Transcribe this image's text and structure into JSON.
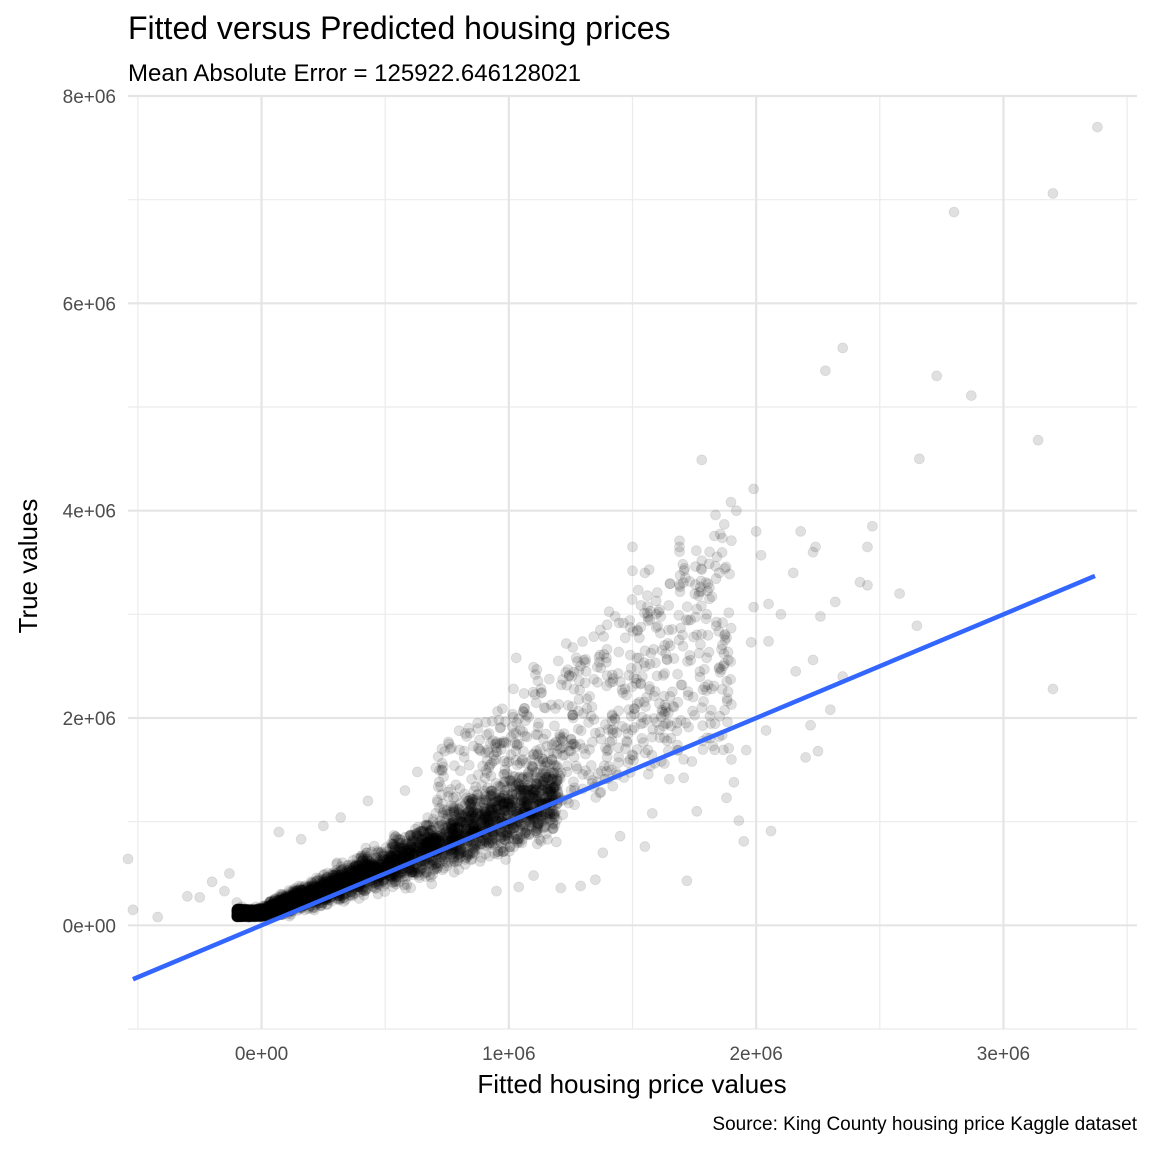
{
  "chart_data": {
    "type": "scatter",
    "title": "Fitted versus Predicted housing prices",
    "subtitle": "Mean Absolute Error = 125922.646128021",
    "xlabel": "Fitted housing price values",
    "ylabel": "True values",
    "caption": "Source: King County housing price Kaggle dataset",
    "xlim": [
      -540000,
      3540000
    ],
    "ylim": [
      -1000000,
      8000000
    ],
    "x_ticks": [
      {
        "value": 0,
        "label": "0e+00"
      },
      {
        "value": 1000000,
        "label": "1e+06"
      },
      {
        "value": 2000000,
        "label": "2e+06"
      },
      {
        "value": 3000000,
        "label": "3e+06"
      }
    ],
    "y_ticks": [
      {
        "value": 0,
        "label": "0e+00"
      },
      {
        "value": 2000000,
        "label": "2e+06"
      },
      {
        "value": 4000000,
        "label": "4e+06"
      },
      {
        "value": 6000000,
        "label": "6e+06"
      },
      {
        "value": 8000000,
        "label": "8e+06"
      }
    ],
    "grid": true,
    "point_color": "#000000",
    "point_opacity": 0.12,
    "line_color": "#3366FF",
    "fit_line": {
      "x": [
        -520000,
        3370000
      ],
      "y": [
        -520000,
        3370000
      ]
    },
    "points": [
      [
        -540000,
        640000
      ],
      [
        -520000,
        150000
      ],
      [
        -420000,
        80000
      ],
      [
        -300000,
        280000
      ],
      [
        -250000,
        270000
      ],
      [
        -200000,
        420000
      ],
      [
        -150000,
        330000
      ],
      [
        -130000,
        500000
      ],
      [
        -100000,
        220000
      ],
      [
        -80000,
        180000
      ],
      [
        1780000,
        4490000
      ],
      [
        1920000,
        4000000
      ],
      [
        1990000,
        4210000
      ],
      [
        2000000,
        3800000
      ],
      [
        2020000,
        3570000
      ],
      [
        1500000,
        3650000
      ],
      [
        1690000,
        3650000
      ],
      [
        1690000,
        3710000
      ],
      [
        1550000,
        3400000
      ],
      [
        1500000,
        3420000
      ],
      [
        2180000,
        3800000
      ],
      [
        2240000,
        3650000
      ],
      [
        2150000,
        3400000
      ],
      [
        2230000,
        3600000
      ],
      [
        2470000,
        3850000
      ],
      [
        2450000,
        3650000
      ],
      [
        2320000,
        3120000
      ],
      [
        2420000,
        3310000
      ],
      [
        2450000,
        3280000
      ],
      [
        2580000,
        3200000
      ],
      [
        2650000,
        2890000
      ],
      [
        2660000,
        4500000
      ],
      [
        2280000,
        5350000
      ],
      [
        2350000,
        5570000
      ],
      [
        2730000,
        5300000
      ],
      [
        2870000,
        5110000
      ],
      [
        2800000,
        6880000
      ],
      [
        3200000,
        7060000
      ],
      [
        3380000,
        7700000
      ],
      [
        3140000,
        4680000
      ],
      [
        3200000,
        2280000
      ],
      [
        1720000,
        430000
      ],
      [
        1950000,
        810000
      ],
      [
        2060000,
        910000
      ],
      [
        2200000,
        1620000
      ],
      [
        2250000,
        1680000
      ],
      [
        2220000,
        1930000
      ],
      [
        2300000,
        2080000
      ],
      [
        1910000,
        1380000
      ],
      [
        1880000,
        1230000
      ],
      [
        1930000,
        1010000
      ],
      [
        1760000,
        1100000
      ],
      [
        1580000,
        1080000
      ],
      [
        1550000,
        760000
      ],
      [
        1450000,
        860000
      ],
      [
        1380000,
        700000
      ],
      [
        1350000,
        440000
      ],
      [
        1290000,
        380000
      ],
      [
        1210000,
        360000
      ],
      [
        1100000,
        480000
      ],
      [
        1040000,
        370000
      ],
      [
        950000,
        330000
      ],
      [
        1960000,
        1690000
      ],
      [
        2040000,
        1880000
      ],
      [
        2050000,
        2740000
      ],
      [
        1980000,
        2730000
      ],
      [
        1870000,
        2620000
      ],
      [
        1800000,
        2580000
      ],
      [
        1630000,
        2700000
      ],
      [
        1700000,
        2320000
      ],
      [
        1820000,
        2280000
      ],
      [
        1900000,
        2130000
      ],
      [
        1990000,
        3070000
      ],
      [
        2050000,
        3100000
      ],
      [
        2100000,
        3000000
      ],
      [
        1800000,
        3000000
      ],
      [
        1760000,
        3050000
      ],
      [
        1600000,
        3210000
      ],
      [
        1560000,
        3180000
      ],
      [
        1430000,
        2980000
      ],
      [
        1370000,
        2850000
      ],
      [
        1520000,
        2850000
      ],
      [
        1570000,
        2950000
      ],
      [
        1420000,
        2350000
      ],
      [
        1290000,
        2500000
      ],
      [
        1200000,
        2550000
      ],
      [
        1030000,
        2580000
      ],
      [
        1130000,
        2240000
      ],
      [
        1080000,
        2010000
      ],
      [
        960000,
        1980000
      ],
      [
        920000,
        1850000
      ],
      [
        820000,
        1680000
      ],
      [
        780000,
        1540000
      ],
      [
        630000,
        1480000
      ],
      [
        580000,
        1300000
      ],
      [
        430000,
        1200000
      ],
      [
        320000,
        1040000
      ],
      [
        250000,
        960000
      ],
      [
        160000,
        830000
      ],
      [
        70000,
        900000
      ],
      [
        2230000,
        2560000
      ],
      [
        2260000,
        2980000
      ],
      [
        2160000,
        2450000
      ],
      [
        2350000,
        2400000
      ],
      [
        1900000,
        1600000
      ],
      [
        1780000,
        2100000
      ],
      [
        1680000,
        1950000
      ],
      [
        1640000,
        1780000
      ],
      [
        1850000,
        1820000
      ],
      [
        1740000,
        1580000
      ]
    ]
  }
}
